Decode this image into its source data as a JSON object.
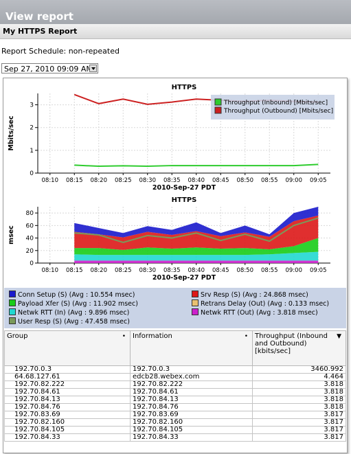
{
  "header": {
    "title": "View report"
  },
  "report": {
    "name": "My HTTPS Report",
    "schedule": "Report Schedule: non-repeated"
  },
  "date_select": {
    "value": "Sep 27, 2010 09:09 AM"
  },
  "colors": {
    "inbound": "#2ecc2e",
    "outbound": "#cc2020",
    "legend_bg": "#c9d3e6"
  },
  "chart_data": [
    {
      "type": "line",
      "title": "HTTPS",
      "xlabel": "2010-Sep-27 PDT",
      "ylabel": "Mbits/sec",
      "x": [
        "08:10",
        "08:15",
        "08:20",
        "08:25",
        "08:30",
        "08:35",
        "08:40",
        "08:45",
        "08:50",
        "08:55",
        "09:00",
        "09:05"
      ],
      "ylim": [
        0,
        3.5
      ],
      "yticks": [
        "0",
        "1",
        "2",
        "3"
      ],
      "series": [
        {
          "name": "Throughput (Inbound) [Mbits/sec]",
          "values": [
            null,
            0.35,
            0.3,
            0.32,
            0.3,
            0.33,
            0.33,
            0.33,
            0.33,
            0.33,
            0.33,
            0.38
          ]
        },
        {
          "name": "Throughput (Outbound) [Mbits/sec]",
          "values": [
            null,
            3.45,
            3.05,
            3.25,
            3.02,
            3.12,
            3.25,
            3.2,
            3.15,
            3.2,
            3.15,
            3.12
          ]
        }
      ],
      "legend": "top-right",
      "grid": true
    },
    {
      "type": "area",
      "title": "HTTPS",
      "xlabel": "2010-Sep-27 PDT",
      "ylabel": "msec",
      "x": [
        "08:10",
        "08:15",
        "08:20",
        "08:25",
        "08:30",
        "08:35",
        "08:40",
        "08:45",
        "08:50",
        "08:55",
        "09:00",
        "09:05"
      ],
      "ylim": [
        0,
        90
      ],
      "yticks": [
        "0",
        "20",
        "40",
        "60",
        "80"
      ],
      "series": [
        {
          "name": "Netwk RTT (Out) (Avg : 3.818 msec)",
          "values": [
            null,
            4,
            4,
            4,
            4,
            4,
            4,
            4,
            4,
            4,
            4,
            4
          ]
        },
        {
          "name": "Netwk RTT (In) (Avg : 9.896 msec)",
          "values": [
            null,
            10,
            9,
            9,
            9,
            9,
            9,
            9,
            9,
            10,
            12,
            14
          ]
        },
        {
          "name": "Payload Xfer (S) (Avg : 11.902 msec)",
          "values": [
            null,
            10,
            11,
            8,
            12,
            10,
            12,
            10,
            11,
            8,
            11,
            22
          ]
        },
        {
          "name": "Srv Resp (S) (Avg : 24.868 msec)",
          "values": [
            null,
            26,
            22,
            20,
            25,
            22,
            26,
            20,
            25,
            20,
            40,
            36
          ]
        },
        {
          "name": "Conn Setup (S) (Avg : 10.554 msec)",
          "values": [
            null,
            14,
            10,
            7,
            9,
            8,
            14,
            5,
            11,
            4,
            13,
            14
          ]
        },
        {
          "name": "Retrans Delay (Out) (Avg : 0.133 msec)",
          "values": [
            null,
            0,
            0,
            0,
            0,
            0,
            0,
            0,
            0,
            0,
            0,
            0
          ]
        },
        {
          "name": "User Resp (S) (Avg : 47.458 msec)",
          "values": [
            null,
            48,
            45,
            33,
            44,
            40,
            48,
            36,
            46,
            35,
            60,
            72
          ]
        }
      ],
      "legend": "bottom",
      "grid": true
    }
  ],
  "legend2": [
    {
      "label": "Conn Setup (S) (Avg : 10.554 msec)",
      "color": "#1a1acc"
    },
    {
      "label": "Srv Resp (S) (Avg : 24.868 msec)",
      "color": "#dd1818"
    },
    {
      "label": "Payload Xfer (S) (Avg : 11.902 msec)",
      "color": "#18cc18"
    },
    {
      "label": "Retrans Delay (Out) (Avg : 0.133 msec)",
      "color": "#e8c070"
    },
    {
      "label": "Netwk RTT (In) (Avg : 9.896 msec)",
      "color": "#20d8d0"
    },
    {
      "label": "Netwk RTT (Out) (Avg : 3.818 msec)",
      "color": "#cc20cc"
    },
    {
      "label": "User Resp (S) (Avg : 47.458 msec)",
      "color": "#7a9a5a"
    }
  ],
  "table": {
    "headers": [
      "Group",
      "Information",
      "Throughput (Inbound and Outbound) [kbits/sec]"
    ],
    "rows": [
      [
        "192.70.0.3",
        "192.70.0.3",
        "3460.992"
      ],
      [
        "64.68.127.61",
        "edcb28.webex.com",
        "4.464"
      ],
      [
        "192.70.82.222",
        "192.70.82.222",
        "3.818"
      ],
      [
        "192.70.84.61",
        "192.70.84.61",
        "3.818"
      ],
      [
        "192.70.84.13",
        "192.70.84.13",
        "3.818"
      ],
      [
        "192.70.84.76",
        "192.70.84.76",
        "3.818"
      ],
      [
        "192.70.83.69",
        "192.70.83.69",
        "3.817"
      ],
      [
        "192.70.82.160",
        "192.70.82.160",
        "3.817"
      ],
      [
        "192.70.84.105",
        "192.70.84.105",
        "3.817"
      ],
      [
        "192.70.84.33",
        "192.70.84.33",
        "3.817"
      ]
    ]
  }
}
